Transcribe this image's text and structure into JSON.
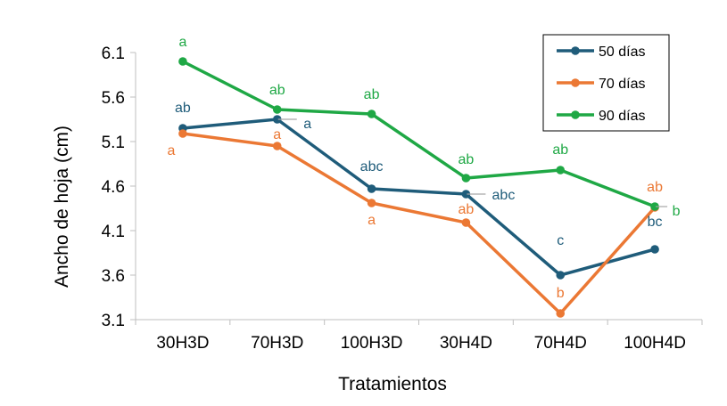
{
  "chart_data": {
    "type": "line",
    "xlabel": "Tratamientos",
    "ylabel": "Ancho de hoja (cm)",
    "categories": [
      "30H3D",
      "70H3D",
      "100H3D",
      "30H4D",
      "70H4D",
      "100H4D"
    ],
    "yticks": [
      "3.1",
      "3.6",
      "4.1",
      "4.6",
      "5.1",
      "5.6",
      "6.1"
    ],
    "ylim": [
      3.1,
      6.1
    ],
    "grid": false,
    "legend_position": "top-right",
    "series": [
      {
        "name": "50 días",
        "color": "#1F5C7A",
        "values": [
          5.25,
          5.35,
          4.57,
          4.51,
          3.6,
          3.89
        ],
        "labels": [
          "ab",
          "a",
          "abc",
          "abc",
          "c",
          "bc"
        ]
      },
      {
        "name": "70 días",
        "color": "#EB7834",
        "values": [
          5.19,
          5.05,
          4.41,
          4.19,
          3.17,
          4.36
        ],
        "labels": [
          "a",
          "a",
          "a",
          "ab",
          "b",
          "ab"
        ]
      },
      {
        "name": "90 días",
        "color": "#1FA845",
        "values": [
          6.0,
          5.46,
          5.41,
          4.69,
          4.78,
          4.37
        ],
        "labels": [
          "a",
          "ab",
          "ab",
          "ab",
          "ab",
          "b"
        ]
      }
    ]
  }
}
